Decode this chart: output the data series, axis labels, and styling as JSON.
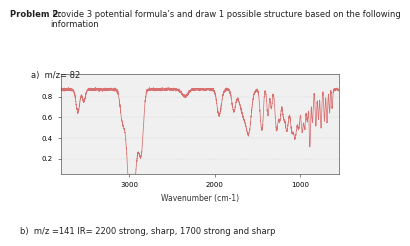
{
  "title_bold": "Problem 2:",
  "title_normal": " Provide 3 potential formula’s and draw 1 possible structure based on the following\ninformation",
  "label_a": "a)  m/z= 82",
  "label_b": "b)  m/z =141 IR= 2200 strong, sharp, 1700 strong and sharp",
  "xlabel": "Wavenumber (cm-1)",
  "xlim": [
    3800,
    550
  ],
  "ylim": [
    0.05,
    1.02
  ],
  "yticks": [
    0.2,
    0.4,
    0.6,
    0.8
  ],
  "xticks": [
    3000,
    2000,
    1000
  ],
  "line_color": "#d87070",
  "bg_color": "#ffffff",
  "plot_bg": "#f0f0f0",
  "grid_color": "#aaaaaa"
}
